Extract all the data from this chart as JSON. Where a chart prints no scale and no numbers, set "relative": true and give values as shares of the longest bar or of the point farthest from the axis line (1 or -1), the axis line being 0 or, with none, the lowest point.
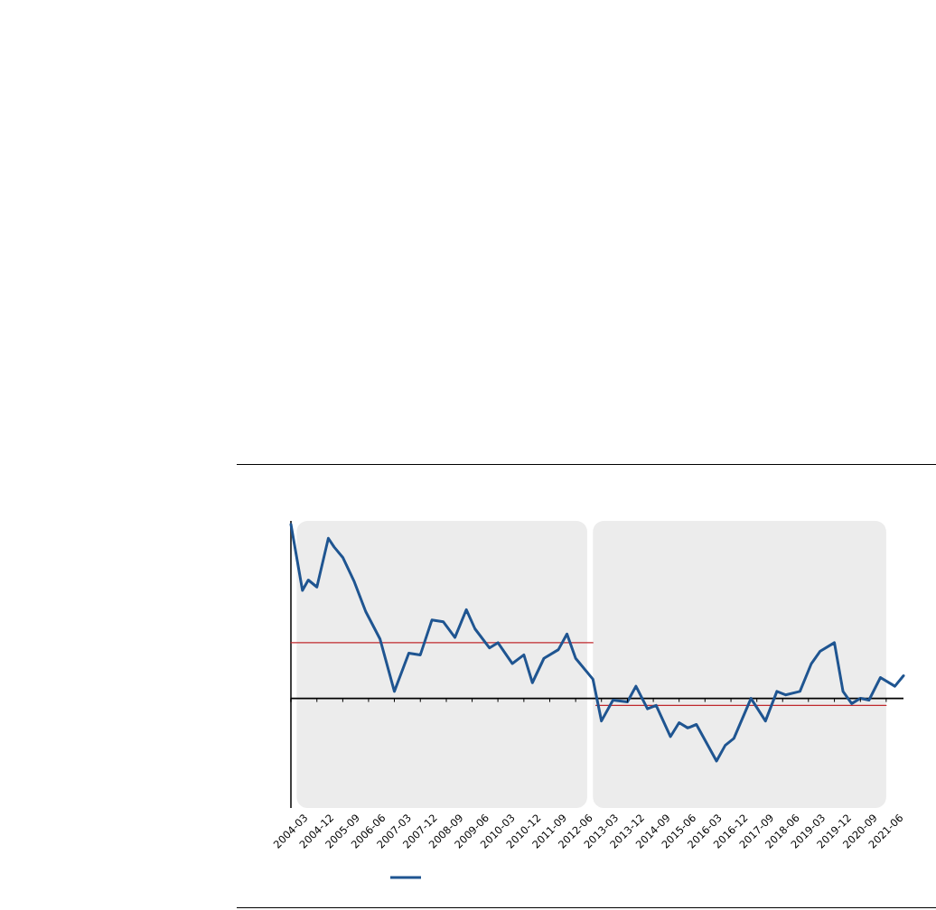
{
  "chart_data": {
    "type": "line",
    "relative": true,
    "xlim": [
      "2004-03",
      "2021-12"
    ],
    "xticks": [
      "2004-03",
      "2004-12",
      "2005-09",
      "2006-06",
      "2007-03",
      "2007-12",
      "2008-09",
      "2009-06",
      "2010-03",
      "2010-12",
      "2011-09",
      "2012-06",
      "2013-03",
      "2013-12",
      "2014-09",
      "2015-06",
      "2016-03",
      "2016-12",
      "2017-09",
      "2018-06",
      "2019-03",
      "2019-12",
      "2020-09",
      "2021-06"
    ],
    "bands": [
      {
        "axis": "x",
        "from": "2004-05",
        "to": "2012-10",
        "color": "#ececec"
      },
      {
        "axis": "x",
        "from": "2012-12",
        "to": "2021-06",
        "color": "#ececec"
      }
    ],
    "legend": false,
    "series": [
      {
        "color": "#1f5591",
        "x": [
          "2004-03",
          "2004-07",
          "2004-09",
          "2004-12",
          "2005-04",
          "2005-06",
          "2005-09",
          "2006-01",
          "2006-05",
          "2006-10",
          "2007-03",
          "2007-08",
          "2007-12",
          "2008-04",
          "2008-08",
          "2008-12",
          "2009-04",
          "2009-07",
          "2009-12",
          "2010-03",
          "2010-08",
          "2010-12",
          "2011-03",
          "2011-07",
          "2011-12",
          "2012-03",
          "2012-06",
          "2012-12",
          "2013-03",
          "2013-07",
          "2013-12",
          "2014-03",
          "2014-07",
          "2014-10",
          "2015-03",
          "2015-06",
          "2015-09",
          "2015-12",
          "2016-07",
          "2016-10",
          "2017-01",
          "2017-07",
          "2017-12",
          "2018-04",
          "2018-07",
          "2018-12",
          "2019-04",
          "2019-07",
          "2019-12",
          "2020-03",
          "2020-06",
          "2020-09",
          "2020-12",
          "2021-04",
          "2021-09",
          "2021-12"
        ],
        "values": [
          1.0,
          0.62,
          0.68,
          0.64,
          0.92,
          0.87,
          0.81,
          0.67,
          0.5,
          0.34,
          0.04,
          0.26,
          0.25,
          0.45,
          0.44,
          0.35,
          0.51,
          0.4,
          0.29,
          0.32,
          0.2,
          0.25,
          0.09,
          0.23,
          0.28,
          0.37,
          0.23,
          0.11,
          -0.13,
          -0.01,
          -0.02,
          0.07,
          -0.06,
          -0.04,
          -0.22,
          -0.14,
          -0.17,
          -0.15,
          -0.36,
          -0.27,
          -0.23,
          0.0,
          -0.13,
          0.04,
          0.02,
          0.04,
          0.2,
          0.27,
          0.32,
          0.04,
          -0.03,
          0.0,
          -0.01,
          0.12,
          0.07,
          0.13
        ]
      },
      {
        "color": "#c0282d",
        "x": [
          "2004-03",
          "2012-12"
        ],
        "values": [
          0.32,
          0.32
        ]
      },
      {
        "color": "#c0282d",
        "x": [
          "2013-01",
          "2021-06"
        ],
        "values": [
          -0.04,
          -0.04
        ]
      }
    ]
  }
}
